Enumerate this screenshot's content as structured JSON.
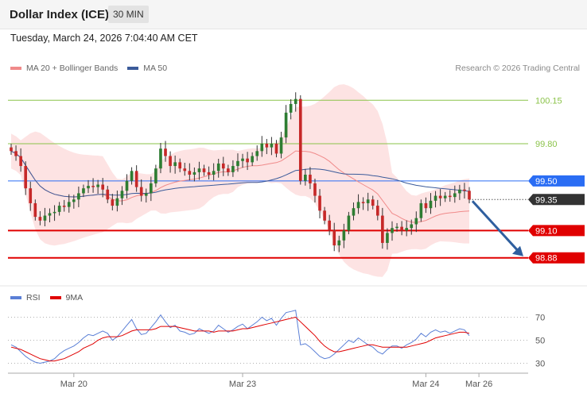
{
  "header": {
    "title": "Dollar Index (ICE)",
    "interval": "30 MIN"
  },
  "datetime": "Tuesday, March 24, 2026 7:04:40 AM CET",
  "legend": {
    "ma20_label": "MA 20 + Bollinger Bands",
    "ma50_label": "MA 50",
    "credit": "Research © 2026 Trading Central"
  },
  "rsi_legend": {
    "rsi_label": "RSI",
    "ma_label": "9MA"
  },
  "colors": {
    "bollinger_fill": "#fde0e0",
    "ma20": "#f08a8a",
    "ma50": "#3b5b9a",
    "up_candle": "#2e7d32",
    "down_candle": "#c62828",
    "resistance_green": "#8bc34a",
    "pivot_blue": "#2a6df4",
    "support_red": "#e00000",
    "current_price": "#333333",
    "rsi": "#5a7fd6",
    "rsi_ma": "#e00000"
  },
  "chart_data": [
    {
      "type": "candlestick",
      "title": "Dollar Index (ICE)",
      "ylim": [
        98.75,
        100.35
      ],
      "levels": [
        {
          "value": 100.15,
          "label": "100.15",
          "style": "resistance"
        },
        {
          "value": 99.8,
          "label": "99.80",
          "style": "resistance"
        },
        {
          "value": 99.5,
          "label": "99.50",
          "style": "pivot"
        },
        {
          "value": 99.35,
          "label": "99.35",
          "style": "current"
        },
        {
          "value": 99.1,
          "label": "99.10",
          "style": "support"
        },
        {
          "value": 98.88,
          "label": "98.88",
          "style": "support"
        }
      ],
      "x_ticks": [
        {
          "index": 13,
          "label": "Mar 20"
        },
        {
          "index": 48,
          "label": "Mar 23"
        },
        {
          "index": 86,
          "label": "Mar 24"
        },
        {
          "index": 97,
          "label": "Mar 26"
        }
      ],
      "closes": [
        99.74,
        99.7,
        99.62,
        99.44,
        99.32,
        99.21,
        99.18,
        99.22,
        99.24,
        99.25,
        99.3,
        99.29,
        99.33,
        99.35,
        99.4,
        99.44,
        99.46,
        99.45,
        99.47,
        99.43,
        99.35,
        99.3,
        99.36,
        99.42,
        99.5,
        99.58,
        99.45,
        99.38,
        99.4,
        99.48,
        99.6,
        99.76,
        99.7,
        99.62,
        99.65,
        99.6,
        99.58,
        99.55,
        99.57,
        99.6,
        99.57,
        99.55,
        99.58,
        99.64,
        99.6,
        99.57,
        99.62,
        99.66,
        99.68,
        99.65,
        99.7,
        99.74,
        99.8,
        99.77,
        99.8,
        99.72,
        99.85,
        100.05,
        100.12,
        100.16,
        99.5,
        99.55,
        99.48,
        99.38,
        99.26,
        99.18,
        99.1,
        98.98,
        99.02,
        99.1,
        99.22,
        99.28,
        99.33,
        99.32,
        99.35,
        99.3,
        99.22,
        99.0,
        99.08,
        99.12,
        99.13,
        99.1,
        99.12,
        99.15,
        99.2,
        99.32,
        99.28,
        99.34,
        99.38,
        99.36,
        99.38,
        99.37,
        99.4,
        99.43,
        99.42,
        99.35
      ],
      "projection": {
        "from": 99.35,
        "to": 98.88
      }
    },
    {
      "type": "line",
      "title": "RSI",
      "ylim": [
        20,
        80
      ],
      "y_ticks": [
        70,
        50,
        30
      ],
      "series": [
        {
          "name": "RSI",
          "values": [
            46,
            44,
            40,
            36,
            33,
            31,
            30,
            31,
            32,
            34,
            38,
            41,
            43,
            45,
            48,
            52,
            55,
            54,
            56,
            58,
            56,
            50,
            53,
            58,
            63,
            68,
            60,
            55,
            56,
            61,
            66,
            72,
            66,
            61,
            63,
            58,
            57,
            55,
            56,
            60,
            58,
            56,
            58,
            63,
            60,
            57,
            59,
            62,
            64,
            60,
            63,
            66,
            70,
            67,
            69,
            63,
            69,
            74,
            75,
            76,
            46,
            47,
            44,
            40,
            36,
            34,
            35,
            38,
            42,
            46,
            50,
            48,
            52,
            49,
            46,
            44,
            40,
            38,
            42,
            45,
            45,
            43,
            46,
            48,
            51,
            56,
            53,
            57,
            59,
            57,
            58,
            56,
            58,
            60,
            59,
            54
          ]
        },
        {
          "name": "9MA",
          "values": [
            44,
            43,
            42,
            40,
            38,
            36,
            34,
            33,
            32,
            32,
            33,
            34,
            36,
            38,
            40,
            43,
            45,
            47,
            50,
            52,
            53,
            53,
            53,
            54,
            56,
            58,
            59,
            59,
            59,
            59,
            60,
            62,
            62,
            62,
            62,
            61,
            60,
            59,
            58,
            58,
            58,
            58,
            57,
            58,
            58,
            58,
            58,
            59,
            60,
            60,
            61,
            62,
            63,
            64,
            65,
            66,
            67,
            68,
            69,
            70,
            66,
            62,
            58,
            54,
            49,
            45,
            42,
            40,
            40,
            41,
            42,
            43,
            44,
            45,
            46,
            46,
            45,
            44,
            44,
            44,
            44,
            44,
            44,
            45,
            46,
            47,
            48,
            50,
            52,
            53,
            54,
            55,
            56,
            57,
            57,
            56
          ]
        }
      ]
    }
  ]
}
